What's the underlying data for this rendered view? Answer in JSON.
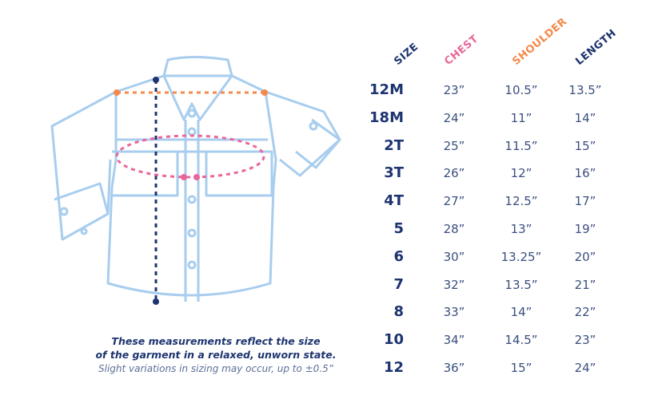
{
  "colors": {
    "navy": "#1d3470",
    "chest": "#e8679a",
    "shoulder": "#f5894a",
    "length": "#1d3470",
    "outline": "#a8cdee"
  },
  "headers": {
    "size": "SIZE",
    "chest": "CHEST",
    "shoulder": "SHOULDER",
    "length": "LENGTH"
  },
  "rows": [
    {
      "size": "12M",
      "chest": "23”",
      "shoulder": "10.5”",
      "length": "13.5”"
    },
    {
      "size": "18M",
      "chest": "24”",
      "shoulder": "11”",
      "length": "14”"
    },
    {
      "size": "2T",
      "chest": "25”",
      "shoulder": "11.5”",
      "length": "15”"
    },
    {
      "size": "3T",
      "chest": "26”",
      "shoulder": "12”",
      "length": "16”"
    },
    {
      "size": "4T",
      "chest": "27”",
      "shoulder": "12.5”",
      "length": "17”"
    },
    {
      "size": "5",
      "chest": "28”",
      "shoulder": "13”",
      "length": "19”"
    },
    {
      "size": "6",
      "chest": "30”",
      "shoulder": "13.25”",
      "length": "20”"
    },
    {
      "size": "7",
      "chest": "32”",
      "shoulder": "13.5”",
      "length": "21”"
    },
    {
      "size": "8",
      "chest": "33”",
      "shoulder": "14”",
      "length": "22”"
    },
    {
      "size": "10",
      "chest": "34”",
      "shoulder": "14.5”",
      "length": "23”"
    },
    {
      "size": "12",
      "chest": "36”",
      "shoulder": "15”",
      "length": "24”"
    }
  ],
  "notes": {
    "line1": "These measurements reflect the size",
    "line2": "of the garment in a relaxed, unworn state.",
    "line3": "Slight variations in sizing may occur, up to ±0.5”"
  }
}
